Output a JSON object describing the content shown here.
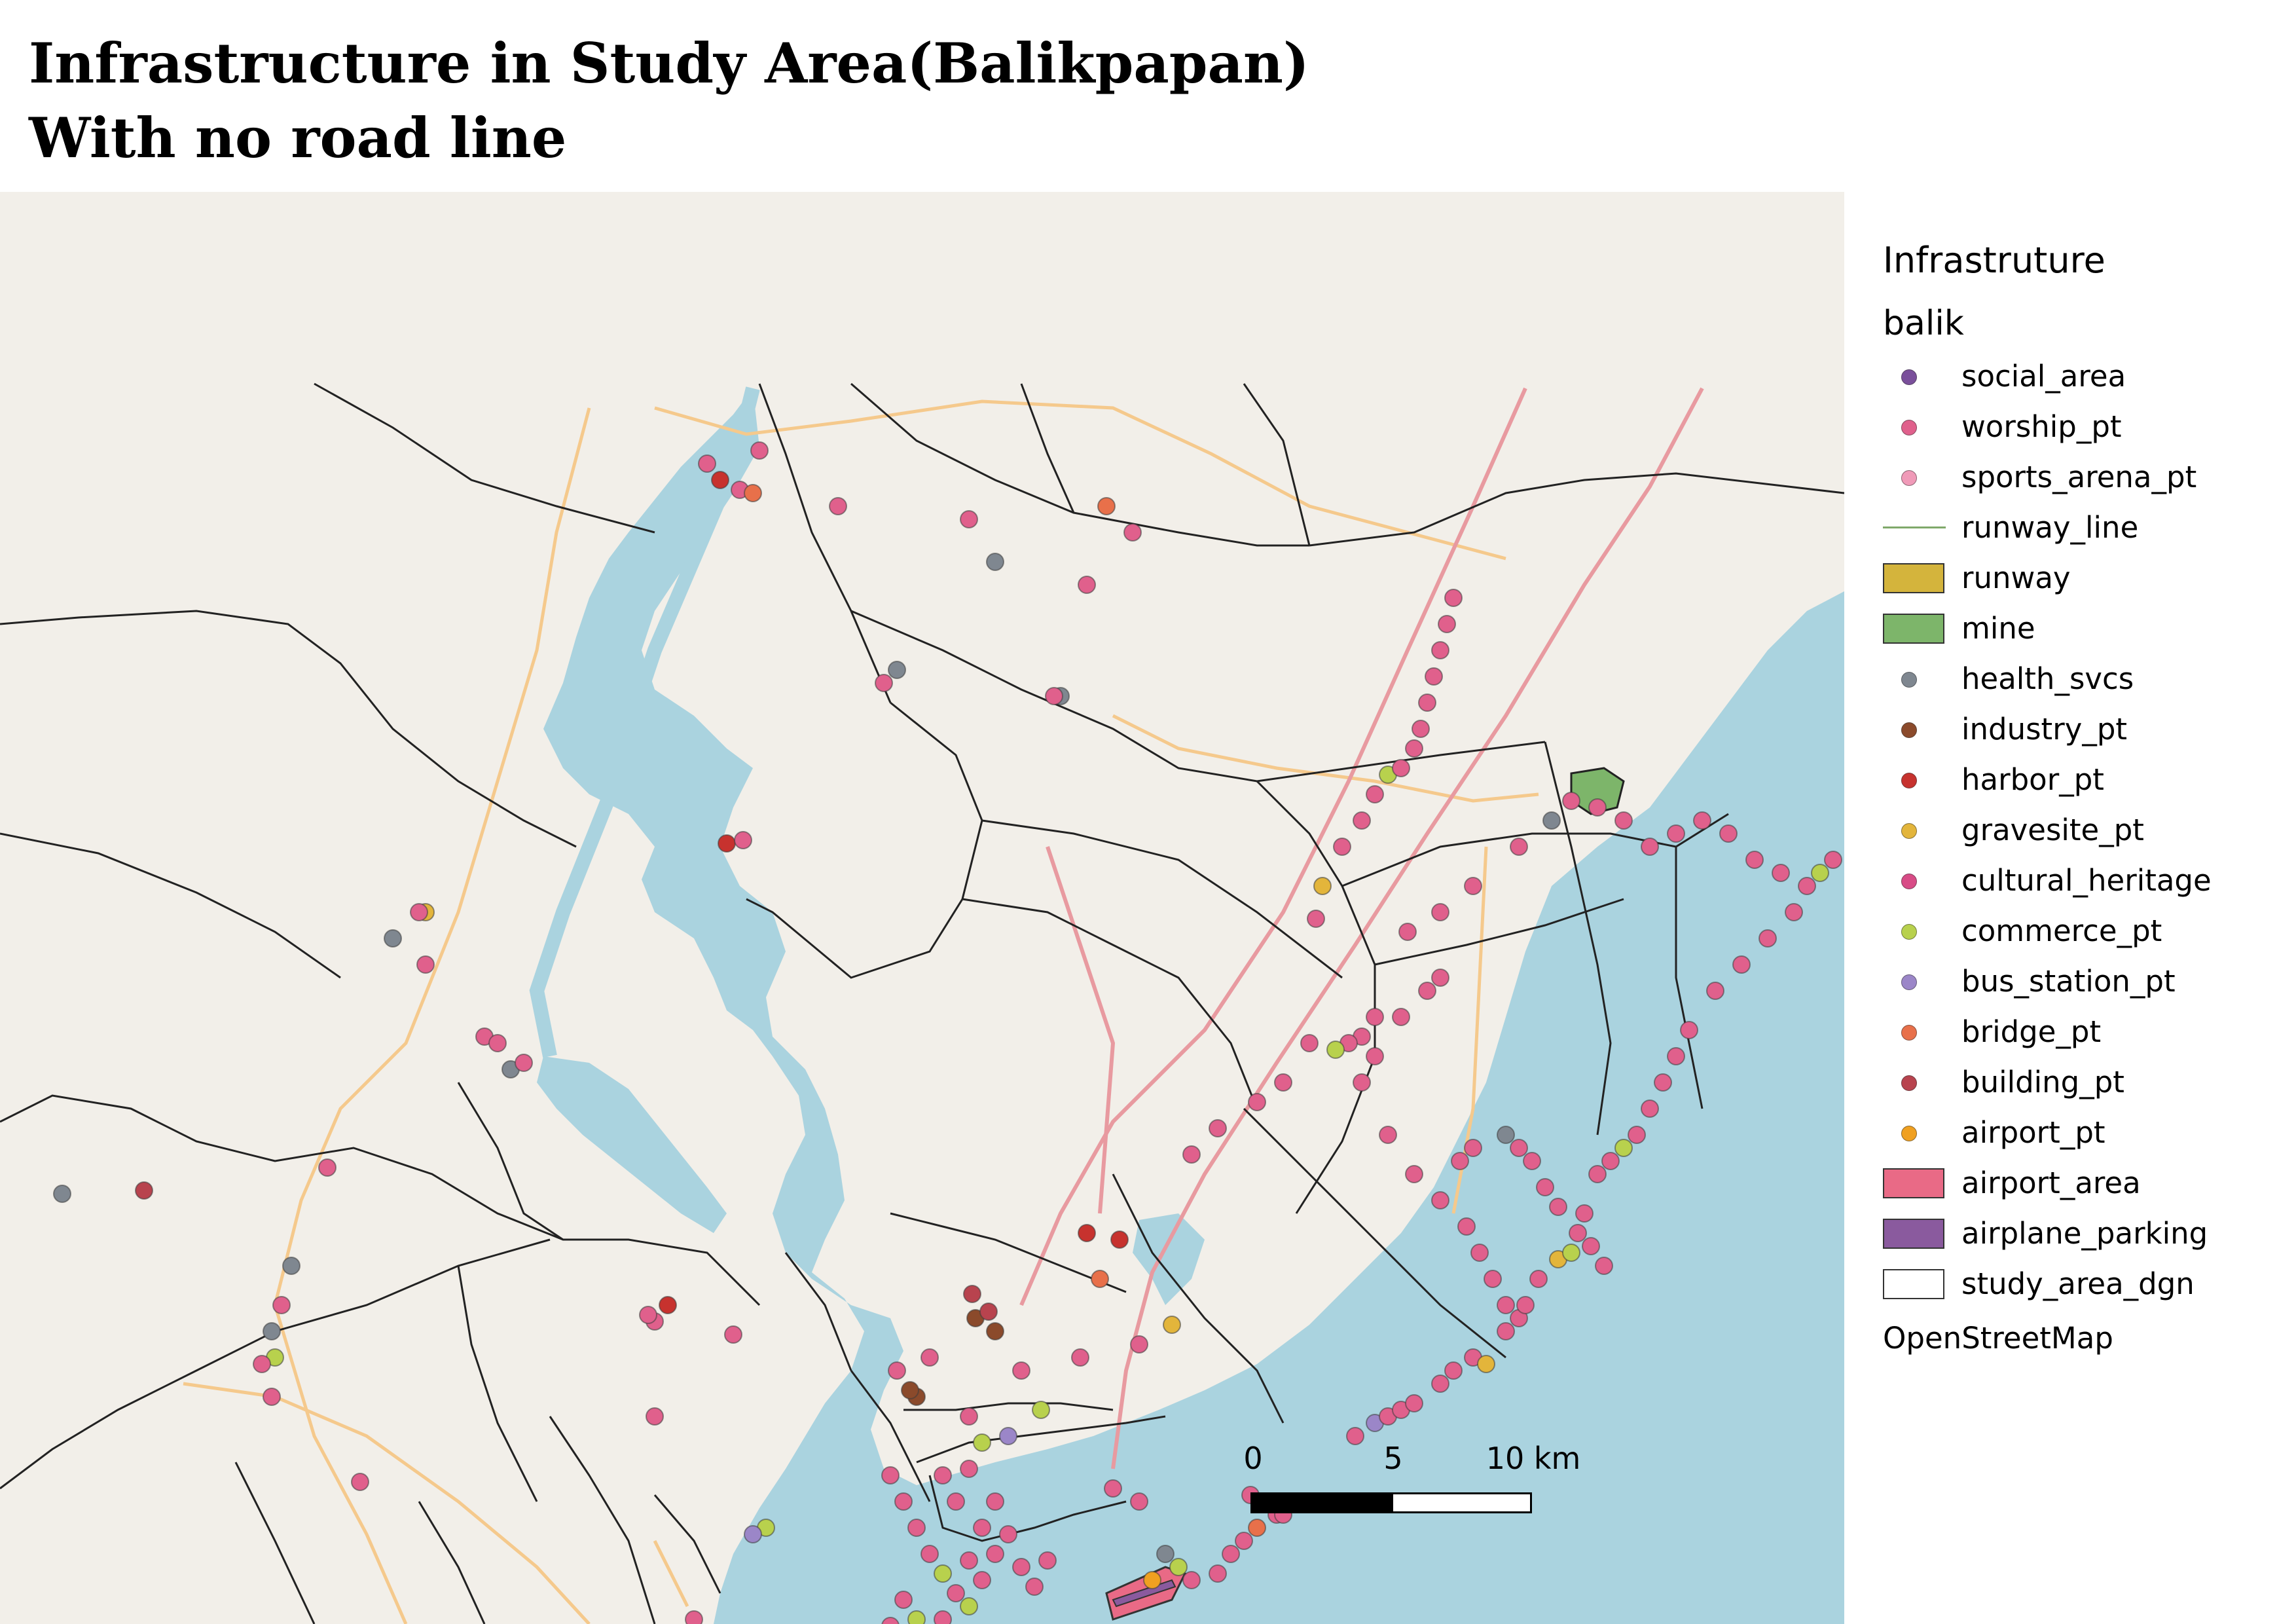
{
  "title": {
    "line1": "Infrastructure in Study Area(Balikpapan)",
    "line2": "With no road line"
  },
  "legend": {
    "title": "Infrastruture",
    "group": "balik",
    "items": [
      {
        "label": "social_area",
        "kind": "dot",
        "color": "#7a4f9b"
      },
      {
        "label": "worship_pt",
        "kind": "dot",
        "color": "#e0608c"
      },
      {
        "label": "sports_arena_pt",
        "kind": "dot",
        "color": "#f09ab8"
      },
      {
        "label": "runway_line",
        "kind": "line",
        "color": "#7fa86a"
      },
      {
        "label": "runway",
        "kind": "box",
        "color": "#d4b43c"
      },
      {
        "label": "mine",
        "kind": "box",
        "color": "#7db56a"
      },
      {
        "label": "health_svcs",
        "kind": "dot",
        "color": "#7f8790"
      },
      {
        "label": "industry_pt",
        "kind": "dot",
        "color": "#8b4a2b"
      },
      {
        "label": "harbor_pt",
        "kind": "dot",
        "color": "#c7322e"
      },
      {
        "label": "gravesite_pt",
        "kind": "dot",
        "color": "#e3b53b"
      },
      {
        "label": "cultural_heritage",
        "kind": "dot",
        "color": "#d84b86"
      },
      {
        "label": "commerce_pt",
        "kind": "dot",
        "color": "#b8d14d"
      },
      {
        "label": "bus_station_pt",
        "kind": "dot",
        "color": "#9b86c8"
      },
      {
        "label": "bridge_pt",
        "kind": "dot",
        "color": "#e8704a"
      },
      {
        "label": "building_pt",
        "kind": "dot",
        "color": "#b8434e"
      },
      {
        "label": "airport_pt",
        "kind": "dot",
        "color": "#f0a020"
      },
      {
        "label": "airport_area",
        "kind": "box",
        "color": "#e96a86"
      },
      {
        "label": "airplane_parking",
        "kind": "box",
        "color": "#8a5a9e"
      },
      {
        "label": "study_area_dgn",
        "kind": "box",
        "color": "#ffffff"
      }
    ],
    "source": "OpenStreetMap"
  },
  "scalebar": {
    "labels": [
      "0",
      "5",
      "10 km"
    ]
  },
  "map": {
    "land_color": "#f2efe9",
    "water_color": "#aad3df",
    "boundary_color": "#222222",
    "road_color": "#f5c98c",
    "trunk_color": "#e89aa0"
  }
}
